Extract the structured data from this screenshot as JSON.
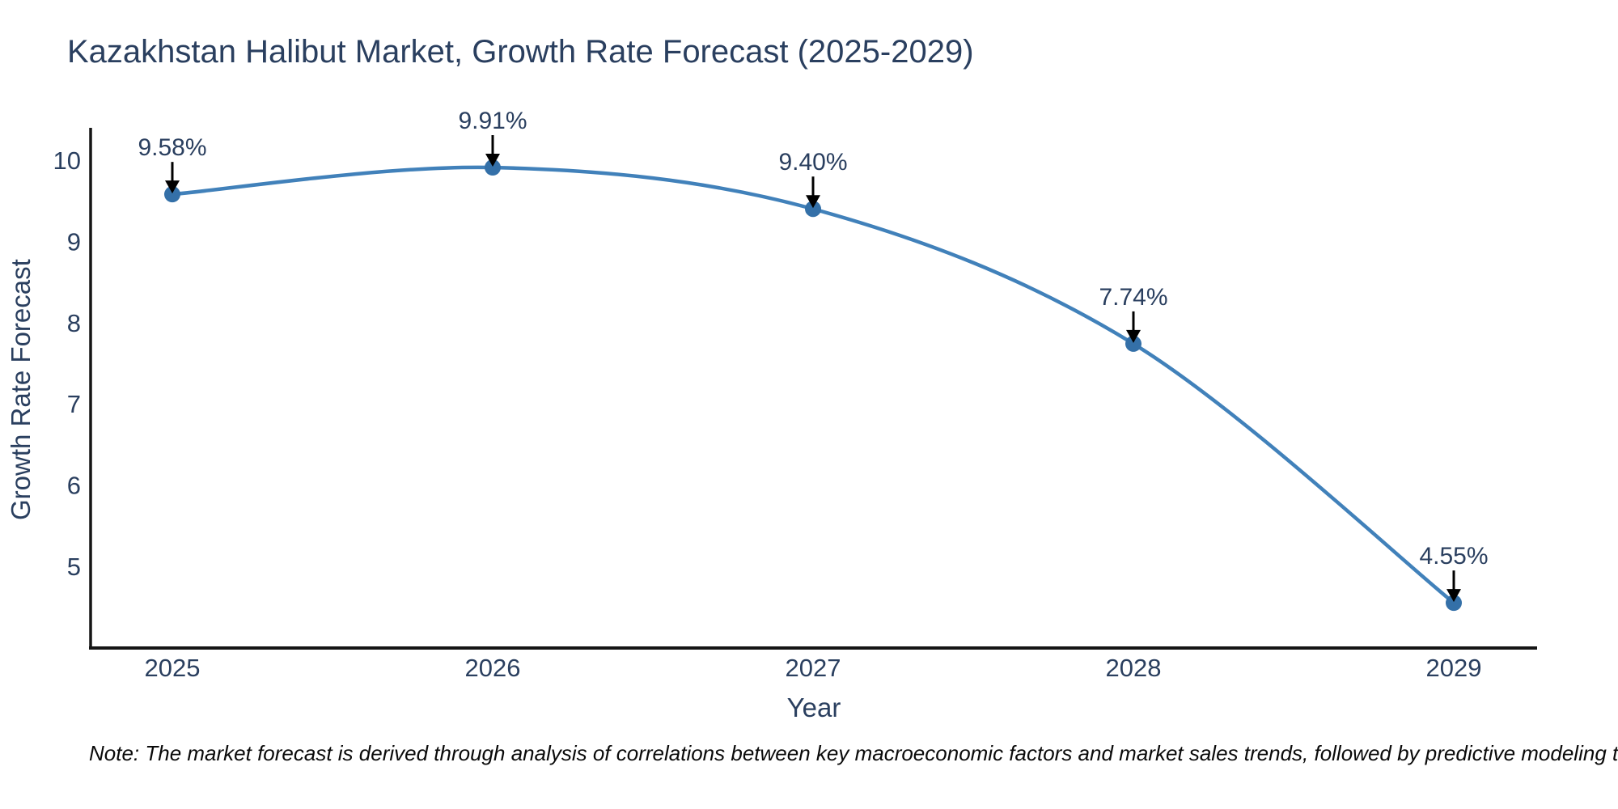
{
  "chart_data": {
    "type": "line",
    "title": "Kazakhstan Halibut Market, Growth Rate Forecast (2025-2029)",
    "xlabel": "Year",
    "ylabel": "Growth Rate Forecast",
    "categories": [
      "2025",
      "2026",
      "2027",
      "2028",
      "2029"
    ],
    "series": [
      {
        "name": "Growth Rate Forecast",
        "values": [
          9.58,
          9.91,
          9.4,
          7.74,
          4.55
        ],
        "point_labels": [
          "9.58%",
          "9.91%",
          "9.40%",
          "7.74%",
          "4.55%"
        ]
      }
    ],
    "yticks": [
      5,
      6,
      7,
      8,
      9,
      10
    ],
    "ylim": [
      4.0,
      10.4
    ],
    "grid": false,
    "legend_position": "none",
    "line_shape": "spline",
    "marker_style": "filled-circle",
    "annotation_style": "label-with-down-arrow",
    "colors": {
      "line": "#4181ba",
      "marker": "#3470a8",
      "arrow": "#000000",
      "axis_line": "#151515",
      "text": "#2a3f5f",
      "background": "#ffffff"
    }
  },
  "note": {
    "text": "Note: The market forecast is derived through analysis of correlations between key macroeconomic factors and market sales trends, followed by predictive modeling to project future sales"
  }
}
